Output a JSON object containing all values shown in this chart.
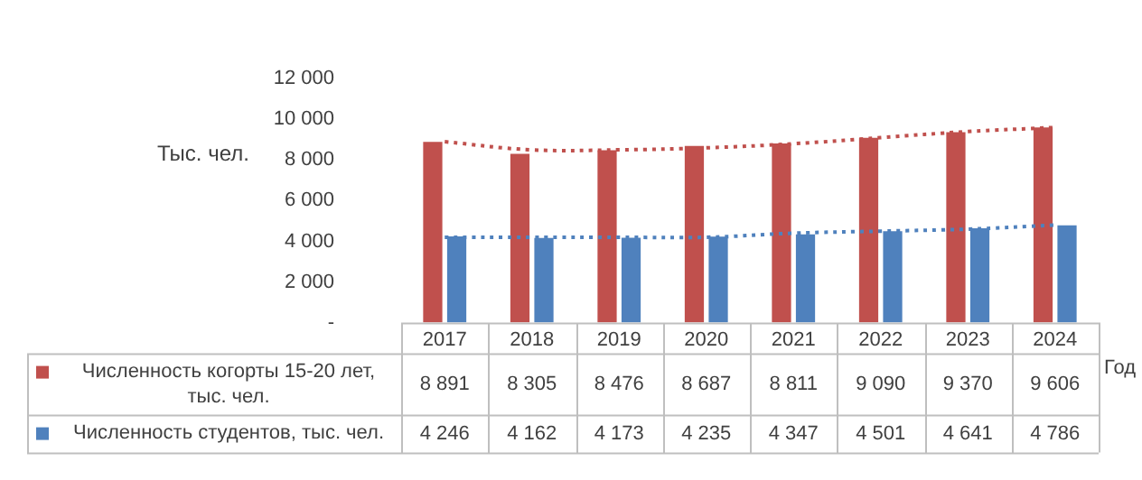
{
  "chart_data": {
    "type": "bar",
    "xlabel": "Год",
    "ylabel": "Тыс. чел.",
    "categories": [
      "2017",
      "2018",
      "2019",
      "2020",
      "2021",
      "2022",
      "2023",
      "2024"
    ],
    "series": [
      {
        "name": "Численность когорты 15-20 лет, тыс. чел.",
        "color": "#c0504d",
        "values": [
          8891,
          8305,
          8476,
          8687,
          8811,
          9090,
          9370,
          9606
        ],
        "value_labels": [
          "8 891",
          "8 305",
          "8 476",
          "8 687",
          "8 811",
          "9 090",
          "9 370",
          "9 606"
        ]
      },
      {
        "name": "Численность студентов, тыс. чел.",
        "color": "#4f81bd",
        "values": [
          4246,
          4162,
          4173,
          4235,
          4347,
          4501,
          4641,
          4786
        ],
        "value_labels": [
          "4 246",
          "4 162",
          "4 173",
          "4 235",
          "4 347",
          "4 501",
          "4 641",
          "4 786"
        ]
      },
      {
        "type": "line",
        "color": "#c0504d",
        "line_style": "dotted",
        "values": [
          8900,
          8500,
          8500,
          8600,
          8800,
          9100,
          9400,
          9600
        ]
      },
      {
        "type": "line",
        "color": "#4f81bd",
        "line_style": "dotted",
        "values": [
          4200,
          4200,
          4200,
          4200,
          4400,
          4500,
          4600,
          4800
        ]
      }
    ],
    "ylim": [
      0,
      12000
    ],
    "yticks": [
      {
        "value": 0,
        "label": "-"
      },
      {
        "value": 2000,
        "label": "2 000"
      },
      {
        "value": 4000,
        "label": "4 000"
      },
      {
        "value": 6000,
        "label": "6 000"
      },
      {
        "value": 8000,
        "label": "8 000"
      },
      {
        "value": 10000,
        "label": "10 000"
      },
      {
        "value": 12000,
        "label": "12 000"
      }
    ],
    "grid": false,
    "legend": "bottom"
  }
}
